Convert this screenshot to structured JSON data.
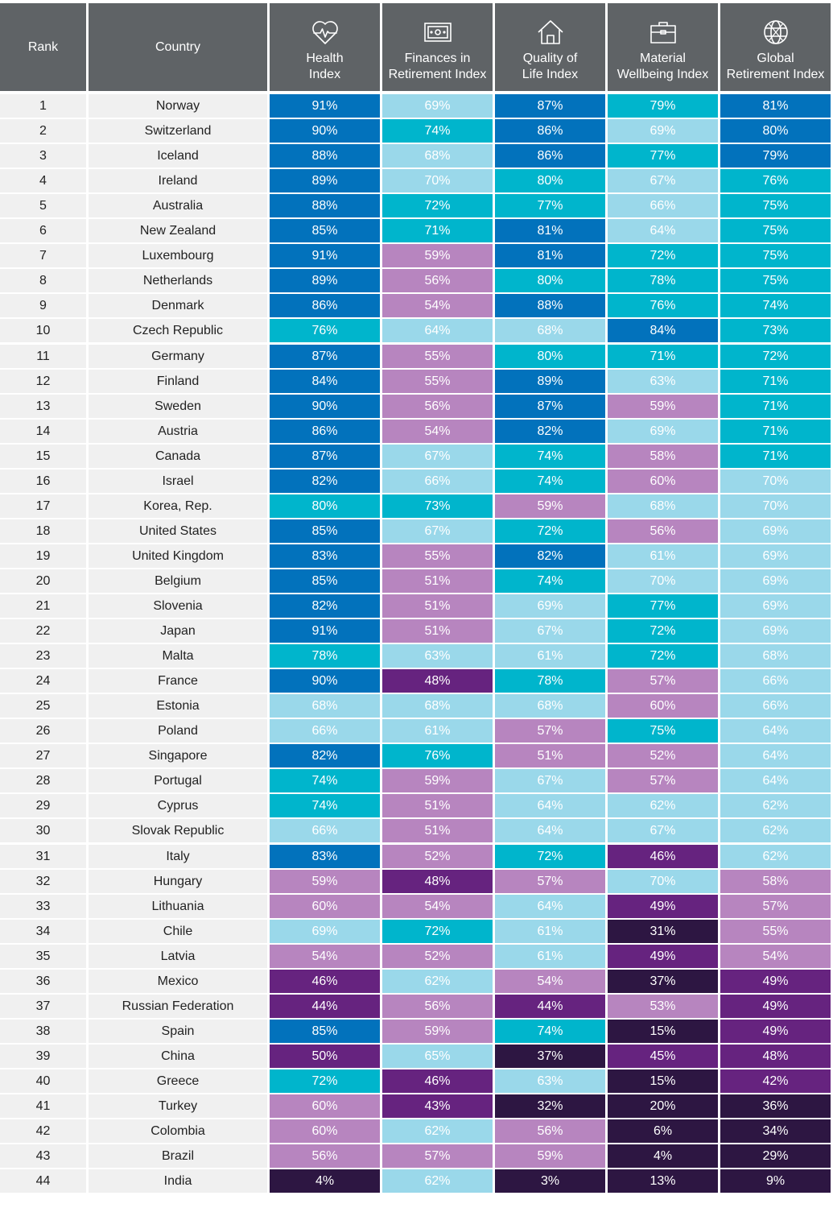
{
  "headers": {
    "rank": "Rank",
    "country": "Country",
    "health": "Health\nIndex",
    "finances": "Finances in\nRetirement Index",
    "quality": "Quality of\nLife Index",
    "material": "Material\nWellbeing Index",
    "global": "Global\nRetirement Index"
  },
  "icons": {
    "health": "heart-pulse-icon",
    "finances": "banknote-icon",
    "quality": "house-icon",
    "material": "briefcase-icon",
    "global": "globe-icon"
  },
  "color_scale": {
    "dark_blue": "#0272bc",
    "teal": "#00b5cc",
    "light_blue": "#9ad8ea",
    "lavender": "#b785bf",
    "purple": "#66237f",
    "dark_purple": "#2d1642"
  },
  "chart_data": {
    "type": "table",
    "columns": [
      "Rank",
      "Country",
      "Health Index",
      "Finances in Retirement Index",
      "Quality of Life Index",
      "Material Wellbeing Index",
      "Global Retirement Index"
    ],
    "rows": [
      {
        "rank": "1",
        "country": "Norway",
        "values": [
          "91%",
          "69%",
          "87%",
          "79%",
          "81%"
        ],
        "colors": [
          "dark_blue",
          "light_blue",
          "dark_blue",
          "teal",
          "dark_blue"
        ]
      },
      {
        "rank": "2",
        "country": "Switzerland",
        "values": [
          "90%",
          "74%",
          "86%",
          "69%",
          "80%"
        ],
        "colors": [
          "dark_blue",
          "teal",
          "dark_blue",
          "light_blue",
          "dark_blue"
        ]
      },
      {
        "rank": "3",
        "country": "Iceland",
        "values": [
          "88%",
          "68%",
          "86%",
          "77%",
          "79%"
        ],
        "colors": [
          "dark_blue",
          "light_blue",
          "dark_blue",
          "teal",
          "dark_blue"
        ]
      },
      {
        "rank": "4",
        "country": "Ireland",
        "values": [
          "89%",
          "70%",
          "80%",
          "67%",
          "76%"
        ],
        "colors": [
          "dark_blue",
          "light_blue",
          "teal",
          "light_blue",
          "teal"
        ]
      },
      {
        "rank": "5",
        "country": "Australia",
        "values": [
          "88%",
          "72%",
          "77%",
          "66%",
          "75%"
        ],
        "colors": [
          "dark_blue",
          "teal",
          "teal",
          "light_blue",
          "teal"
        ]
      },
      {
        "rank": "6",
        "country": "New Zealand",
        "values": [
          "85%",
          "71%",
          "81%",
          "64%",
          "75%"
        ],
        "colors": [
          "dark_blue",
          "teal",
          "dark_blue",
          "light_blue",
          "teal"
        ]
      },
      {
        "rank": "7",
        "country": "Luxembourg",
        "values": [
          "91%",
          "59%",
          "81%",
          "72%",
          "75%"
        ],
        "colors": [
          "dark_blue",
          "lavender",
          "dark_blue",
          "teal",
          "teal"
        ]
      },
      {
        "rank": "8",
        "country": "Netherlands",
        "values": [
          "89%",
          "56%",
          "80%",
          "78%",
          "75%"
        ],
        "colors": [
          "dark_blue",
          "lavender",
          "teal",
          "teal",
          "teal"
        ]
      },
      {
        "rank": "9",
        "country": "Denmark",
        "values": [
          "86%",
          "54%",
          "88%",
          "76%",
          "74%"
        ],
        "colors": [
          "dark_blue",
          "lavender",
          "dark_blue",
          "teal",
          "teal"
        ]
      },
      {
        "rank": "10",
        "country": "Czech Republic",
        "values": [
          "76%",
          "64%",
          "68%",
          "84%",
          "73%"
        ],
        "colors": [
          "teal",
          "light_blue",
          "light_blue",
          "dark_blue",
          "teal"
        ]
      },
      {
        "rank": "11",
        "country": "Germany",
        "values": [
          "87%",
          "55%",
          "80%",
          "71%",
          "72%"
        ],
        "colors": [
          "dark_blue",
          "lavender",
          "teal",
          "teal",
          "teal"
        ]
      },
      {
        "rank": "12",
        "country": "Finland",
        "values": [
          "84%",
          "55%",
          "89%",
          "63%",
          "71%"
        ],
        "colors": [
          "dark_blue",
          "lavender",
          "dark_blue",
          "light_blue",
          "teal"
        ]
      },
      {
        "rank": "13",
        "country": "Sweden",
        "values": [
          "90%",
          "56%",
          "87%",
          "59%",
          "71%"
        ],
        "colors": [
          "dark_blue",
          "lavender",
          "dark_blue",
          "lavender",
          "teal"
        ]
      },
      {
        "rank": "14",
        "country": "Austria",
        "values": [
          "86%",
          "54%",
          "82%",
          "69%",
          "71%"
        ],
        "colors": [
          "dark_blue",
          "lavender",
          "dark_blue",
          "light_blue",
          "teal"
        ]
      },
      {
        "rank": "15",
        "country": "Canada",
        "values": [
          "87%",
          "67%",
          "74%",
          "58%",
          "71%"
        ],
        "colors": [
          "dark_blue",
          "light_blue",
          "teal",
          "lavender",
          "teal"
        ]
      },
      {
        "rank": "16",
        "country": "Israel",
        "values": [
          "82%",
          "66%",
          "74%",
          "60%",
          "70%"
        ],
        "colors": [
          "dark_blue",
          "light_blue",
          "teal",
          "lavender",
          "light_blue"
        ]
      },
      {
        "rank": "17",
        "country": "Korea, Rep.",
        "values": [
          "80%",
          "73%",
          "59%",
          "68%",
          "70%"
        ],
        "colors": [
          "teal",
          "teal",
          "lavender",
          "light_blue",
          "light_blue"
        ]
      },
      {
        "rank": "18",
        "country": "United States",
        "values": [
          "85%",
          "67%",
          "72%",
          "56%",
          "69%"
        ],
        "colors": [
          "dark_blue",
          "light_blue",
          "teal",
          "lavender",
          "light_blue"
        ]
      },
      {
        "rank": "19",
        "country": "United Kingdom",
        "values": [
          "83%",
          "55%",
          "82%",
          "61%",
          "69%"
        ],
        "colors": [
          "dark_blue",
          "lavender",
          "dark_blue",
          "light_blue",
          "light_blue"
        ]
      },
      {
        "rank": "20",
        "country": "Belgium",
        "values": [
          "85%",
          "51%",
          "74%",
          "70%",
          "69%"
        ],
        "colors": [
          "dark_blue",
          "lavender",
          "teal",
          "light_blue",
          "light_blue"
        ]
      },
      {
        "rank": "21",
        "country": "Slovenia",
        "values": [
          "82%",
          "51%",
          "69%",
          "77%",
          "69%"
        ],
        "colors": [
          "dark_blue",
          "lavender",
          "light_blue",
          "teal",
          "light_blue"
        ]
      },
      {
        "rank": "22",
        "country": "Japan",
        "values": [
          "91%",
          "51%",
          "67%",
          "72%",
          "69%"
        ],
        "colors": [
          "dark_blue",
          "lavender",
          "light_blue",
          "teal",
          "light_blue"
        ]
      },
      {
        "rank": "23",
        "country": "Malta",
        "values": [
          "78%",
          "63%",
          "61%",
          "72%",
          "68%"
        ],
        "colors": [
          "teal",
          "light_blue",
          "light_blue",
          "teal",
          "light_blue"
        ]
      },
      {
        "rank": "24",
        "country": "France",
        "values": [
          "90%",
          "48%",
          "78%",
          "57%",
          "66%"
        ],
        "colors": [
          "dark_blue",
          "purple",
          "teal",
          "lavender",
          "light_blue"
        ]
      },
      {
        "rank": "25",
        "country": "Estonia",
        "values": [
          "68%",
          "68%",
          "68%",
          "60%",
          "66%"
        ],
        "colors": [
          "light_blue",
          "light_blue",
          "light_blue",
          "lavender",
          "light_blue"
        ]
      },
      {
        "rank": "26",
        "country": "Poland",
        "values": [
          "66%",
          "61%",
          "57%",
          "75%",
          "64%"
        ],
        "colors": [
          "light_blue",
          "light_blue",
          "lavender",
          "teal",
          "light_blue"
        ]
      },
      {
        "rank": "27",
        "country": "Singapore",
        "values": [
          "82%",
          "76%",
          "51%",
          "52%",
          "64%"
        ],
        "colors": [
          "dark_blue",
          "teal",
          "lavender",
          "lavender",
          "light_blue"
        ]
      },
      {
        "rank": "28",
        "country": "Portugal",
        "values": [
          "74%",
          "59%",
          "67%",
          "57%",
          "64%"
        ],
        "colors": [
          "teal",
          "lavender",
          "light_blue",
          "lavender",
          "light_blue"
        ]
      },
      {
        "rank": "29",
        "country": "Cyprus",
        "values": [
          "74%",
          "51%",
          "64%",
          "62%",
          "62%"
        ],
        "colors": [
          "teal",
          "lavender",
          "light_blue",
          "light_blue",
          "light_blue"
        ]
      },
      {
        "rank": "30",
        "country": "Slovak Republic",
        "values": [
          "66%",
          "51%",
          "64%",
          "67%",
          "62%"
        ],
        "colors": [
          "light_blue",
          "lavender",
          "light_blue",
          "light_blue",
          "light_blue"
        ]
      },
      {
        "rank": "31",
        "country": "Italy",
        "values": [
          "83%",
          "52%",
          "72%",
          "46%",
          "62%"
        ],
        "colors": [
          "dark_blue",
          "lavender",
          "teal",
          "purple",
          "light_blue"
        ]
      },
      {
        "rank": "32",
        "country": "Hungary",
        "values": [
          "59%",
          "48%",
          "57%",
          "70%",
          "58%"
        ],
        "colors": [
          "lavender",
          "purple",
          "lavender",
          "light_blue",
          "lavender"
        ]
      },
      {
        "rank": "33",
        "country": "Lithuania",
        "values": [
          "60%",
          "54%",
          "64%",
          "49%",
          "57%"
        ],
        "colors": [
          "lavender",
          "lavender",
          "light_blue",
          "purple",
          "lavender"
        ]
      },
      {
        "rank": "34",
        "country": "Chile",
        "values": [
          "69%",
          "72%",
          "61%",
          "31%",
          "55%"
        ],
        "colors": [
          "light_blue",
          "teal",
          "light_blue",
          "dark_purple",
          "lavender"
        ]
      },
      {
        "rank": "35",
        "country": "Latvia",
        "values": [
          "54%",
          "52%",
          "61%",
          "49%",
          "54%"
        ],
        "colors": [
          "lavender",
          "lavender",
          "light_blue",
          "purple",
          "lavender"
        ]
      },
      {
        "rank": "36",
        "country": "Mexico",
        "values": [
          "46%",
          "62%",
          "54%",
          "37%",
          "49%"
        ],
        "colors": [
          "purple",
          "light_blue",
          "lavender",
          "dark_purple",
          "purple"
        ]
      },
      {
        "rank": "37",
        "country": "Russian Federation",
        "values": [
          "44%",
          "56%",
          "44%",
          "53%",
          "49%"
        ],
        "colors": [
          "purple",
          "lavender",
          "purple",
          "lavender",
          "purple"
        ]
      },
      {
        "rank": "38",
        "country": "Spain",
        "values": [
          "85%",
          "59%",
          "74%",
          "15%",
          "49%"
        ],
        "colors": [
          "dark_blue",
          "lavender",
          "teal",
          "dark_purple",
          "purple"
        ]
      },
      {
        "rank": "39",
        "country": "China",
        "values": [
          "50%",
          "65%",
          "37%",
          "45%",
          "48%"
        ],
        "colors": [
          "purple",
          "light_blue",
          "dark_purple",
          "purple",
          "purple"
        ]
      },
      {
        "rank": "40",
        "country": "Greece",
        "values": [
          "72%",
          "46%",
          "63%",
          "15%",
          "42%"
        ],
        "colors": [
          "teal",
          "purple",
          "light_blue",
          "dark_purple",
          "purple"
        ]
      },
      {
        "rank": "41",
        "country": "Turkey",
        "values": [
          "60%",
          "43%",
          "32%",
          "20%",
          "36%"
        ],
        "colors": [
          "lavender",
          "purple",
          "dark_purple",
          "dark_purple",
          "dark_purple"
        ]
      },
      {
        "rank": "42",
        "country": "Colombia",
        "values": [
          "60%",
          "62%",
          "56%",
          "6%",
          "34%"
        ],
        "colors": [
          "lavender",
          "light_blue",
          "lavender",
          "dark_purple",
          "dark_purple"
        ]
      },
      {
        "rank": "43",
        "country": "Brazil",
        "values": [
          "56%",
          "57%",
          "59%",
          "4%",
          "29%"
        ],
        "colors": [
          "lavender",
          "lavender",
          "lavender",
          "dark_purple",
          "dark_purple"
        ]
      },
      {
        "rank": "44",
        "country": "India",
        "values": [
          "4%",
          "62%",
          "3%",
          "13%",
          "9%"
        ],
        "colors": [
          "dark_purple",
          "light_blue",
          "dark_purple",
          "dark_purple",
          "dark_purple"
        ]
      }
    ]
  }
}
